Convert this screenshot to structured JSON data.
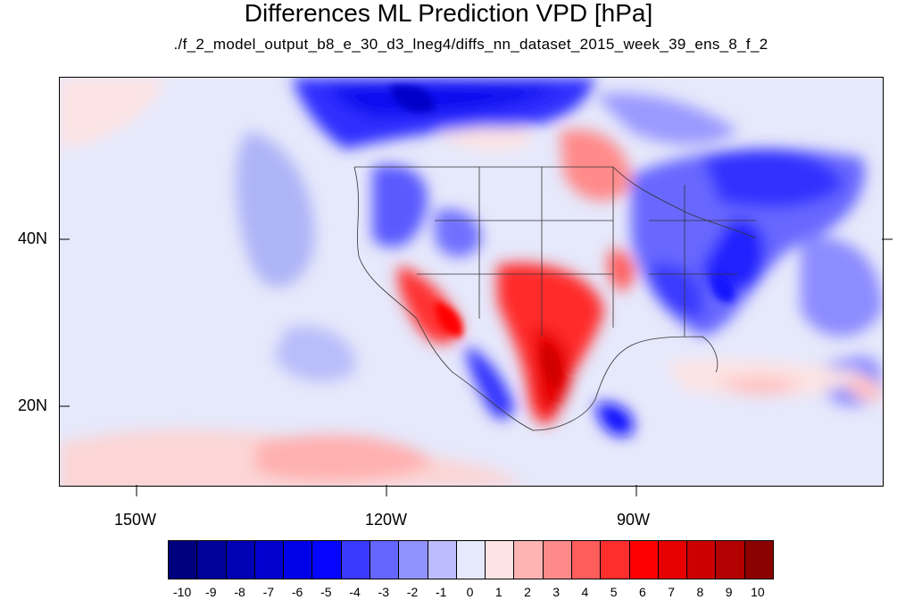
{
  "title": "Differences ML Prediction VPD [hPa]",
  "subtitle": "./f_2_model_output_b8_e_30_d3_lneg4/diffs_nn_dataset_2015_week_39_ens_8_f_2",
  "lat_labels": [
    "40N",
    "20N"
  ],
  "lon_labels": [
    "150W",
    "120W",
    "90W"
  ],
  "colorbar": {
    "labels": [
      "-10",
      "-9",
      "-8",
      "-7",
      "-6",
      "-5",
      "-4",
      "-3",
      "-2",
      "-1",
      "0",
      "1",
      "2",
      "3",
      "4",
      "5",
      "6",
      "7",
      "8",
      "9",
      "10"
    ],
    "colors": [
      "#00007f",
      "#00009a",
      "#0000b4",
      "#0000cf",
      "#0000e9",
      "#0505ff",
      "#3a3aff",
      "#6565ff",
      "#9292ff",
      "#bcbcff",
      "#e6e8fb",
      "#fde3e3",
      "#ffb4b4",
      "#ff8a8a",
      "#ff5c5c",
      "#ff2e2e",
      "#ff0000",
      "#e60000",
      "#cc0000",
      "#b30000",
      "#8b0000"
    ]
  }
}
